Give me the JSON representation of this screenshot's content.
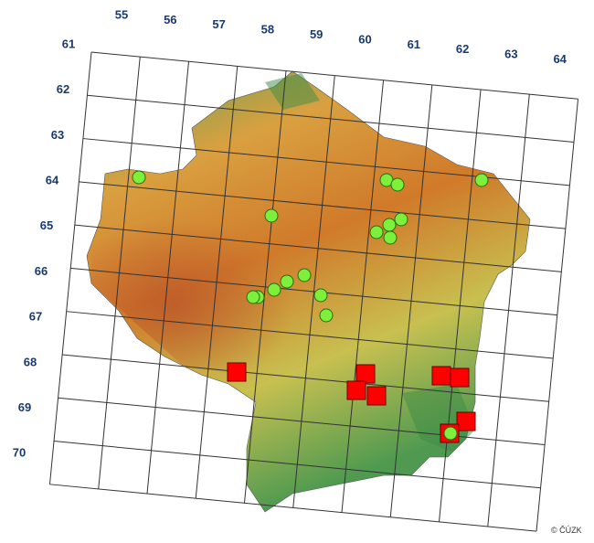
{
  "map": {
    "column_labels": [
      55,
      56,
      57,
      58,
      59,
      60,
      61,
      62,
      63,
      64
    ],
    "row_labels": [
      61,
      62,
      63,
      64,
      65,
      66,
      67,
      68,
      69,
      70
    ],
    "copyright": "© ČÚZK"
  }
}
